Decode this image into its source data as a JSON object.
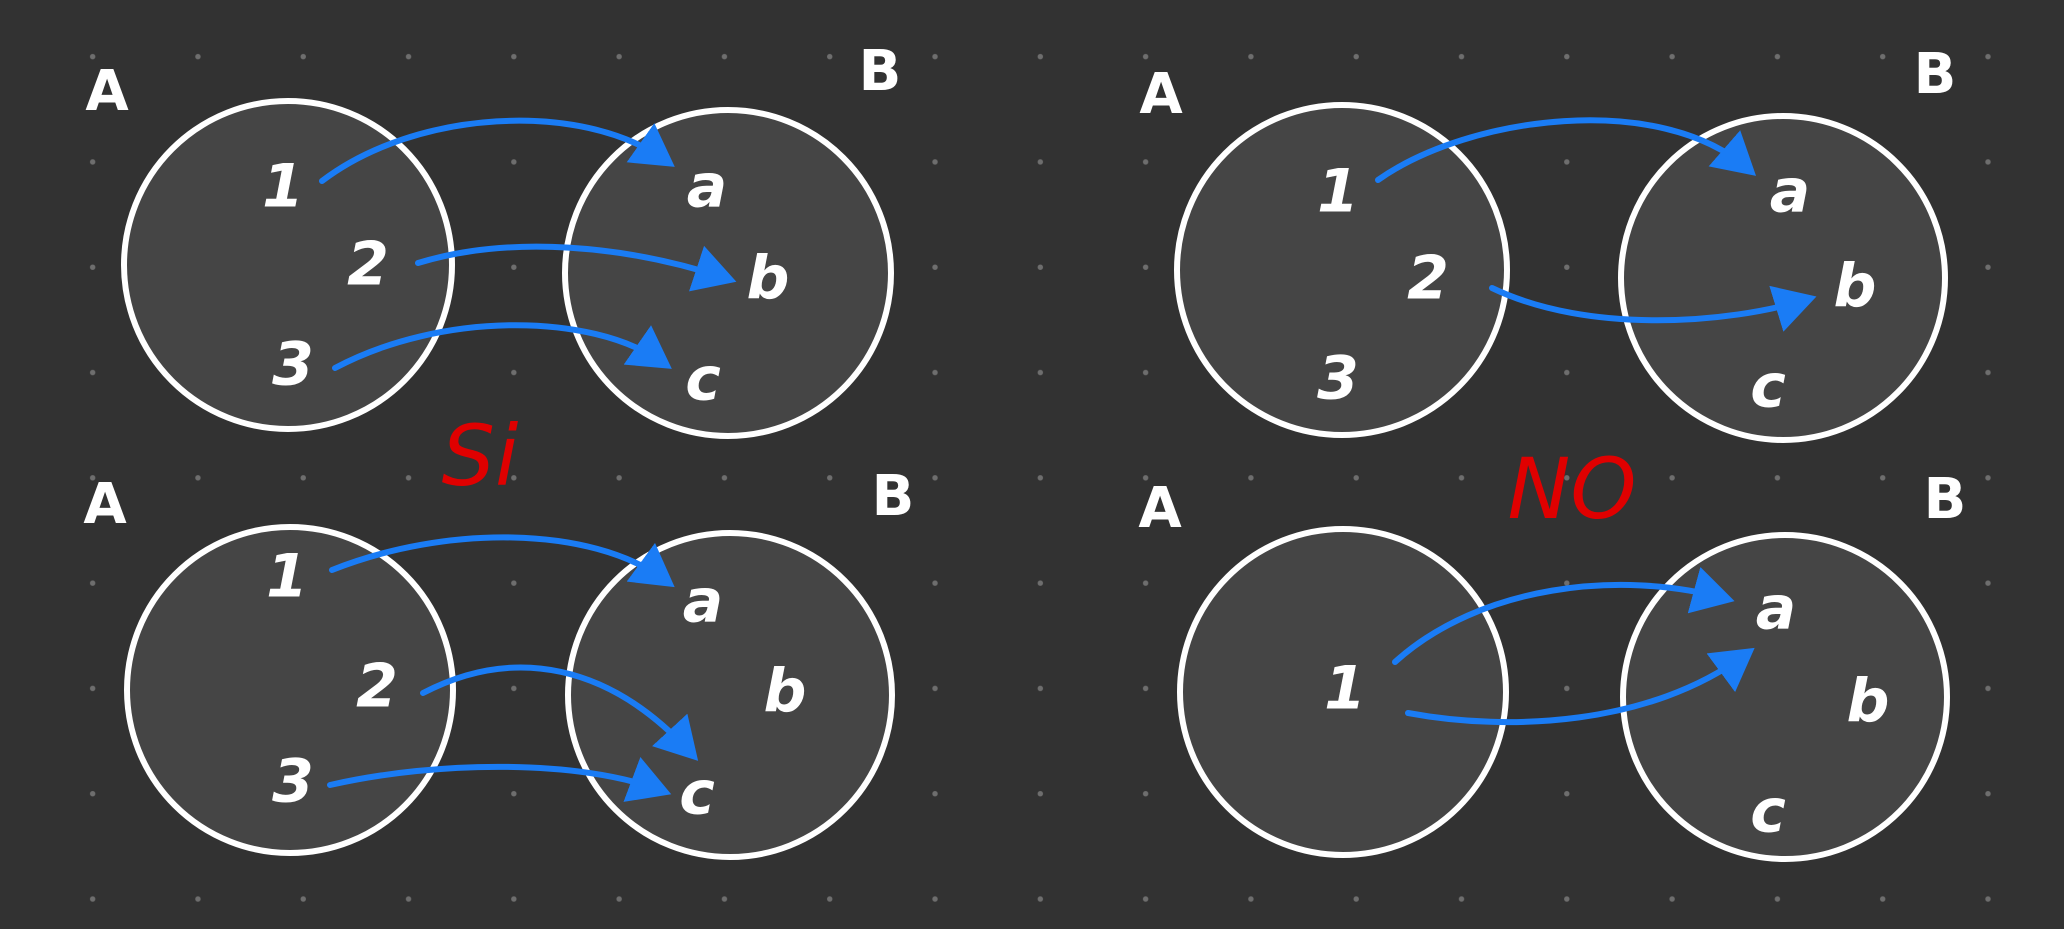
{
  "panels": [
    {
      "domain_label": "A",
      "codomain_label": "B",
      "domain_elements": [
        "1",
        "2",
        "3"
      ],
      "codomain_elements": [
        "a",
        "b",
        "c"
      ],
      "mappings": [
        [
          "1",
          "a"
        ],
        [
          "2",
          "b"
        ],
        [
          "3",
          "c"
        ]
      ]
    },
    {
      "domain_label": "A",
      "codomain_label": "B",
      "domain_elements": [
        "1",
        "2",
        "3"
      ],
      "codomain_elements": [
        "a",
        "b",
        "c"
      ],
      "mappings": [
        [
          "1",
          "a"
        ],
        [
          "2",
          "b"
        ]
      ]
    },
    {
      "domain_label": "A",
      "codomain_label": "B",
      "domain_elements": [
        "1",
        "2",
        "3"
      ],
      "codomain_elements": [
        "a",
        "b",
        "c"
      ],
      "mappings": [
        [
          "1",
          "a"
        ],
        [
          "2",
          "c"
        ],
        [
          "3",
          "c"
        ]
      ]
    },
    {
      "domain_label": "A",
      "codomain_label": "B",
      "domain_elements": [
        "1"
      ],
      "codomain_elements": [
        "a",
        "b",
        "c"
      ],
      "mappings": [
        [
          "1",
          "a"
        ],
        [
          "1",
          "a"
        ]
      ]
    }
  ],
  "verdicts": {
    "yes": "Si",
    "no": "NO"
  },
  "colors": {
    "background": "#323232",
    "set_fill": "#454545",
    "set_outline": "#ffffff",
    "arrow": "#1a7cf5",
    "verdict": "#e00000"
  }
}
